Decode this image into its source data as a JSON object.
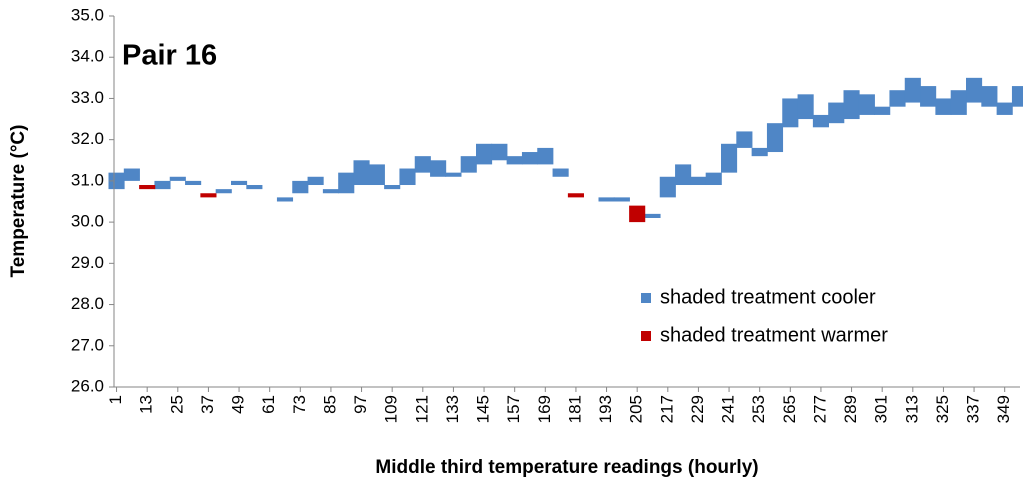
{
  "chart_data": {
    "type": "range-bar",
    "title": "Pair 16",
    "x_label": "Middle third temperature readings (hourly)",
    "y_label": "Temperature (°C)",
    "x": [
      1,
      7,
      13,
      19,
      25,
      31,
      37,
      43,
      49,
      55,
      61,
      67,
      73,
      79,
      85,
      91,
      97,
      103,
      109,
      115,
      121,
      127,
      133,
      139,
      145,
      151,
      157,
      163,
      169,
      175,
      181,
      187,
      193,
      199,
      205,
      211,
      217,
      223,
      229,
      235,
      241,
      247,
      253,
      259,
      265,
      271,
      277,
      283,
      289,
      295,
      301,
      307,
      313,
      319,
      325,
      331,
      337,
      343,
      349,
      355
    ],
    "series": [
      {
        "name": "shaded treatment cooler",
        "color": "#4f86c6",
        "low": [
          30.8,
          31.0,
          null,
          30.8,
          31.0,
          30.9,
          null,
          30.7,
          30.9,
          30.8,
          null,
          30.5,
          30.7,
          30.9,
          30.7,
          30.7,
          30.9,
          30.9,
          30.8,
          30.9,
          31.2,
          31.1,
          31.1,
          31.2,
          31.4,
          31.5,
          31.4,
          31.4,
          31.4,
          31.1,
          null,
          null,
          30.5,
          30.5,
          null,
          30.1,
          30.6,
          30.9,
          30.9,
          30.9,
          31.2,
          31.8,
          31.6,
          31.7,
          32.3,
          32.5,
          32.3,
          32.4,
          32.5,
          32.6,
          32.6,
          32.8,
          32.9,
          32.8,
          32.6,
          32.6,
          32.9,
          32.8,
          32.6,
          32.8
        ],
        "high": [
          31.2,
          31.3,
          null,
          31.0,
          31.1,
          31.0,
          null,
          30.8,
          31.0,
          30.9,
          null,
          30.6,
          31.0,
          31.1,
          30.8,
          31.2,
          31.5,
          31.4,
          30.9,
          31.3,
          31.6,
          31.5,
          31.2,
          31.6,
          31.9,
          31.9,
          31.6,
          31.7,
          31.8,
          31.3,
          null,
          null,
          30.6,
          30.6,
          null,
          30.2,
          31.1,
          31.4,
          31.1,
          31.2,
          31.9,
          32.2,
          31.8,
          32.4,
          33.0,
          33.1,
          32.6,
          32.9,
          33.2,
          33.1,
          32.8,
          33.2,
          33.5,
          33.3,
          33.0,
          33.2,
          33.5,
          33.3,
          32.9,
          33.3
        ]
      },
      {
        "name": "shaded treatment warmer",
        "color": "#c00000",
        "low": [
          null,
          null,
          30.8,
          null,
          null,
          null,
          30.6,
          null,
          null,
          null,
          null,
          null,
          null,
          null,
          null,
          null,
          null,
          null,
          null,
          null,
          null,
          null,
          null,
          null,
          null,
          null,
          null,
          null,
          null,
          null,
          30.6,
          null,
          null,
          null,
          30.0,
          null,
          null,
          null,
          null,
          null,
          null,
          null,
          null,
          null,
          null,
          null,
          null,
          null,
          null,
          null,
          null,
          null,
          null,
          null,
          null,
          null,
          null,
          null,
          null,
          null
        ],
        "high": [
          null,
          null,
          30.9,
          null,
          null,
          null,
          30.7,
          null,
          null,
          null,
          null,
          null,
          null,
          null,
          null,
          null,
          null,
          null,
          null,
          null,
          null,
          null,
          null,
          null,
          null,
          null,
          null,
          null,
          null,
          null,
          30.7,
          null,
          null,
          null,
          30.4,
          null,
          null,
          null,
          null,
          null,
          null,
          null,
          null,
          null,
          null,
          null,
          null,
          null,
          null,
          null,
          null,
          null,
          null,
          null,
          null,
          null,
          null,
          null,
          null,
          null
        ]
      }
    ],
    "xlim": [
      0,
      355
    ],
    "xticks": [
      1,
      13,
      25,
      37,
      49,
      61,
      73,
      85,
      97,
      109,
      121,
      133,
      145,
      157,
      169,
      181,
      193,
      205,
      217,
      229,
      241,
      253,
      265,
      277,
      289,
      301,
      313,
      325,
      337,
      349
    ],
    "ylim": [
      26,
      35
    ],
    "yticks": [
      {
        "value": 26,
        "label": "26.0"
      },
      {
        "value": 27,
        "label": "27.0"
      },
      {
        "value": 28,
        "label": "28.0"
      },
      {
        "value": 29,
        "label": "29.0"
      },
      {
        "value": 30,
        "label": "30.0"
      },
      {
        "value": 31,
        "label": "31.0"
      },
      {
        "value": 32,
        "label": "32.0"
      },
      {
        "value": 33,
        "label": "33.0"
      },
      {
        "value": 34,
        "label": "34.0"
      },
      {
        "value": 35,
        "label": "35.0"
      }
    ],
    "grid": false
  }
}
